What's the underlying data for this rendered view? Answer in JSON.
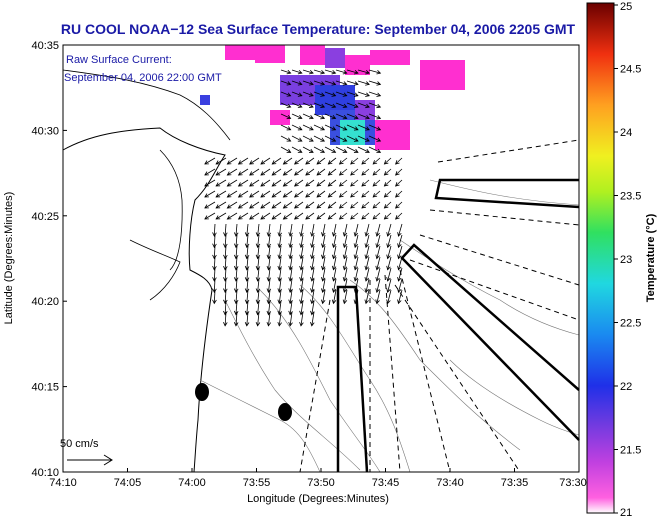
{
  "chart_data": {
    "type": "map-quiver",
    "title": "RU COOL  NOAA−12  Sea Surface Temperature:  September 04, 2006 2205 GMT",
    "annotation_lines": [
      "Raw Surface Current:",
      "September 04, 2006 22:00 GMT"
    ],
    "xlabel": "Longitude (Degrees:Minutes)",
    "ylabel": "Latitude (Degrees:Minutes)",
    "x_ticks": [
      "74:10",
      "74:05",
      "74:00",
      "73:55",
      "73:50",
      "73:45",
      "73:40",
      "73:35",
      "73:30"
    ],
    "y_ticks": [
      "40:35",
      "40:30",
      "40:25",
      "40:20",
      "40:15",
      "40:10"
    ],
    "xlim_minutes_west": [
      4450,
      4410
    ],
    "ylim_minutes_north": [
      2410,
      2435
    ],
    "scale_arrow_label": "50 cm/s",
    "colorbar": {
      "label": "Temperature (°C)",
      "ticks": [
        "25",
        "24.5",
        "24",
        "23.5",
        "23",
        "22.5",
        "22",
        "21.5",
        "21"
      ],
      "min": 21,
      "max": 25
    },
    "accent_colors": {
      "title_blue": "#1a1aa6",
      "sst_magenta": "#ff2fd0",
      "sst_blue": "#2f3fe0",
      "sst_cyan": "#35e0d0"
    }
  }
}
